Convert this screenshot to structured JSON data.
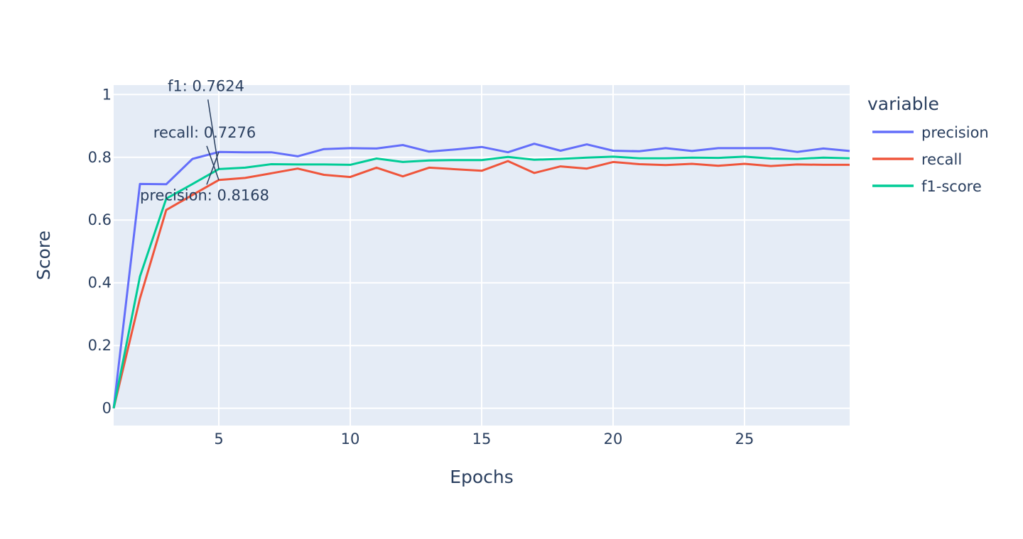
{
  "chart_data": {
    "type": "line",
    "title": "",
    "xlabel": "Epochs",
    "ylabel": "Score",
    "xlim": [
      1,
      29
    ],
    "ylim": [
      -0.055,
      1.03
    ],
    "xticks": [
      5,
      10,
      15,
      20,
      25
    ],
    "yticks": [
      0,
      0.2,
      0.4,
      0.6,
      0.8,
      1
    ],
    "ytick_labels": [
      "0",
      "0.2",
      "0.4",
      "0.6",
      "0.8",
      "1"
    ],
    "grid": true,
    "background": "#e5ecf6",
    "legend": {
      "title": "variable",
      "placement": "right"
    },
    "x": [
      1,
      2,
      3,
      4,
      5,
      6,
      7,
      8,
      9,
      10,
      11,
      12,
      13,
      14,
      15,
      16,
      17,
      18,
      19,
      20,
      21,
      22,
      23,
      24,
      25,
      26,
      27,
      28,
      29
    ],
    "series": [
      {
        "name": "precision",
        "color": "#636efa",
        "values": [
          0.0,
          0.715,
          0.714,
          0.795,
          0.8168,
          0.816,
          0.816,
          0.803,
          0.826,
          0.829,
          0.828,
          0.839,
          0.818,
          0.825,
          0.833,
          0.816,
          0.843,
          0.821,
          0.841,
          0.821,
          0.819,
          0.829,
          0.82,
          0.829,
          0.829,
          0.829,
          0.817,
          0.828,
          0.82
        ]
      },
      {
        "name": "recall",
        "color": "#ef553b",
        "values": [
          0.0,
          0.35,
          0.632,
          0.68,
          0.7276,
          0.734,
          0.749,
          0.764,
          0.744,
          0.737,
          0.767,
          0.739,
          0.767,
          0.762,
          0.757,
          0.788,
          0.75,
          0.771,
          0.764,
          0.785,
          0.778,
          0.775,
          0.779,
          0.773,
          0.779,
          0.772,
          0.777,
          0.776,
          0.776
        ]
      },
      {
        "name": "f1-score",
        "color": "#00cc96",
        "values": [
          0.0,
          0.42,
          0.668,
          0.715,
          0.7624,
          0.767,
          0.778,
          0.777,
          0.777,
          0.776,
          0.796,
          0.785,
          0.79,
          0.791,
          0.791,
          0.801,
          0.792,
          0.795,
          0.799,
          0.802,
          0.797,
          0.797,
          0.799,
          0.798,
          0.802,
          0.796,
          0.795,
          0.799,
          0.797
        ]
      }
    ],
    "annotations": [
      {
        "text": "f1: 0.7624",
        "x": 5,
        "y": 0.7624
      },
      {
        "text": "recall: 0.7276",
        "x": 5,
        "y": 0.7276
      },
      {
        "text": "precision: 0.8168",
        "x": 5,
        "y": 0.8168
      }
    ]
  }
}
